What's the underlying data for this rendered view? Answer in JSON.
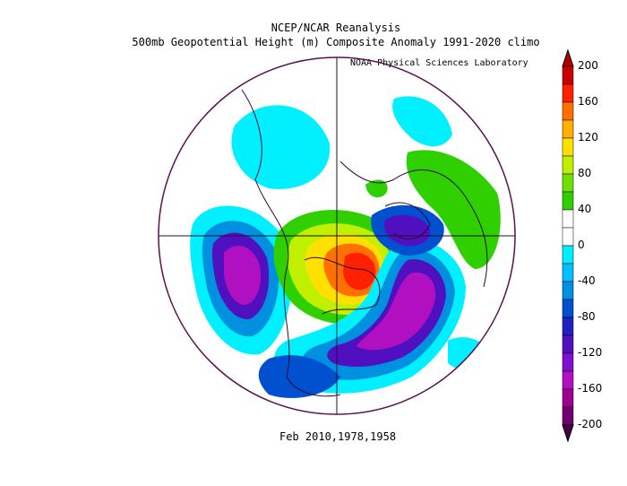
{
  "title": "NCEP/NCAR Reanalysis",
  "subtitle": "500mb Geopotential Height (m) Composite Anomaly 1991-2020 climo",
  "credit": "NOAA Physical Sciences Laboratory",
  "footer": "Feb 2010,1978,1958",
  "colorbar": {
    "levels": [
      200,
      160,
      120,
      80,
      40,
      0,
      -40,
      -80,
      -120,
      -160,
      -200
    ],
    "colors": [
      "#c80000",
      "#ff2000",
      "#ff7000",
      "#ffb000",
      "#ffe000",
      "#c0f000",
      "#70e000",
      "#30d000",
      "#ffffff",
      "#ffffff",
      "#00f0ff",
      "#00c0ff",
      "#0090e0",
      "#0050d0",
      "#2020c0",
      "#5010c0",
      "#8010d0",
      "#b010c0",
      "#a00090",
      "#700070"
    ]
  },
  "colors": {
    "frame": "#5a1050",
    "land": "#2a0a30"
  }
}
